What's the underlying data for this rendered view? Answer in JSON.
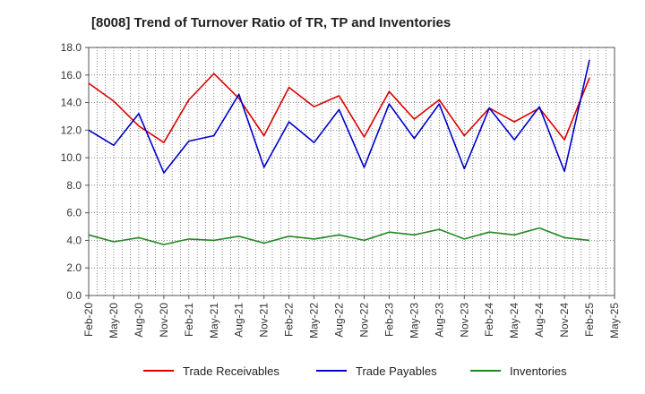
{
  "chart_data": {
    "type": "line",
    "title": "[8008]  Trend of Turnover Ratio of TR, TP and Inventories",
    "xlabel": "",
    "ylabel": "",
    "ylim": [
      0,
      18
    ],
    "yticks": [
      "0.0",
      "2.0",
      "4.0",
      "6.0",
      "8.0",
      "10.0",
      "12.0",
      "14.0",
      "16.0",
      "18.0"
    ],
    "x_tick_labels": [
      "Feb-20",
      "May-20",
      "Aug-20",
      "Nov-20",
      "Feb-21",
      "May-21",
      "Aug-21",
      "Nov-21",
      "Feb-22",
      "May-22",
      "Aug-22",
      "Nov-22",
      "Feb-23",
      "May-23",
      "Aug-23",
      "Nov-23",
      "Feb-24",
      "May-24",
      "Aug-24",
      "Nov-24",
      "Feb-25",
      "May-25"
    ],
    "x": [
      "Feb-20",
      "May-20",
      "Aug-20",
      "Nov-20",
      "Feb-21",
      "May-21",
      "Aug-21",
      "Nov-21",
      "Feb-22",
      "May-22",
      "Aug-22",
      "Nov-22",
      "Feb-23",
      "May-23",
      "Aug-23",
      "Nov-23",
      "Feb-24",
      "May-24",
      "Aug-24",
      "Nov-24",
      "Feb-25"
    ],
    "grid": true,
    "legend_position": "bottom",
    "series": [
      {
        "name": "Trade Receivables",
        "color": "#dd0000",
        "values": [
          15.4,
          14.1,
          12.3,
          11.1,
          14.2,
          16.1,
          14.3,
          11.6,
          15.1,
          13.7,
          14.5,
          11.5,
          14.8,
          12.8,
          14.2,
          11.6,
          13.6,
          12.6,
          13.6,
          11.3,
          15.8
        ]
      },
      {
        "name": "Trade Payables",
        "color": "#0000cc",
        "values": [
          12.0,
          10.9,
          13.2,
          8.9,
          11.2,
          11.6,
          14.6,
          9.3,
          12.6,
          11.1,
          13.5,
          9.3,
          13.9,
          11.4,
          13.9,
          9.2,
          13.6,
          11.3,
          13.7,
          9.0,
          17.1
        ]
      },
      {
        "name": "Inventories",
        "color": "#228822",
        "values": [
          4.4,
          3.9,
          4.2,
          3.7,
          4.1,
          4.0,
          4.3,
          3.8,
          4.3,
          4.1,
          4.4,
          4.0,
          4.6,
          4.4,
          4.8,
          4.1,
          4.6,
          4.4,
          4.9,
          4.2,
          4.0
        ]
      }
    ]
  }
}
